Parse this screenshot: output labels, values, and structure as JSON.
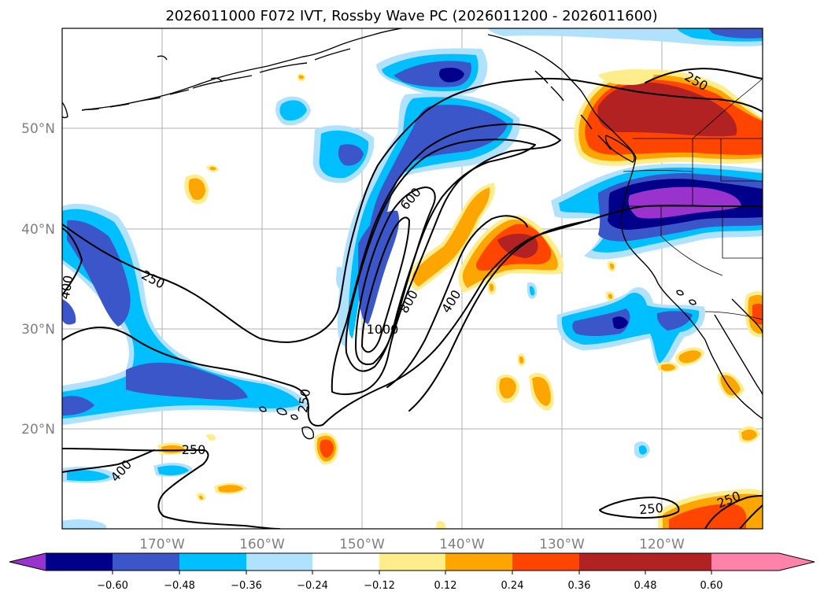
{
  "title": "2026011000 F072 IVT, Rossby Wave PC (2026011200 - 2026011600)",
  "map": {
    "lat_labels": [
      "50°N",
      "40°N",
      "30°N",
      "20°N"
    ],
    "lon_labels": [
      "170°W",
      "160°W",
      "150°W",
      "140°W",
      "130°W",
      "120°W"
    ],
    "lat_range": [
      10,
      60
    ],
    "lon_range": [
      -180,
      -110
    ]
  },
  "ivt_contours": {
    "levels": [
      250,
      400,
      600,
      800,
      1000
    ],
    "labels": [
      {
        "text": "250"
      },
      {
        "text": "250"
      },
      {
        "text": "250"
      },
      {
        "text": "250"
      },
      {
        "text": "250"
      },
      {
        "text": "250"
      },
      {
        "text": "400"
      },
      {
        "text": "400"
      },
      {
        "text": "400"
      },
      {
        "text": "600"
      },
      {
        "text": "800"
      },
      {
        "text": "1000"
      }
    ]
  },
  "colorbar": {
    "ticks": [
      "−0.60",
      "−0.48",
      "−0.36",
      "−0.24",
      "−0.12",
      "0.12",
      "0.24",
      "0.36",
      "0.48",
      "0.60"
    ],
    "colors": [
      "#9a32cd",
      "#00008b",
      "#3a56c8",
      "#00bfff",
      "#b0e2ff",
      "#ffffff",
      "#ffec8b",
      "#ffa500",
      "#ff4500",
      "#b22222",
      "#ff82ab"
    ],
    "extend": "both"
  },
  "palette": {
    "purple": "#9a32cd",
    "navy": "#00008b",
    "royal": "#3a56c8",
    "sky": "#00bfff",
    "pale_blue": "#b0e2ff",
    "light_yellow": "#ffec8b",
    "orange": "#ffa500",
    "red_orange": "#ff4500",
    "firebrick": "#b22222",
    "pink": "#ff82ab"
  }
}
